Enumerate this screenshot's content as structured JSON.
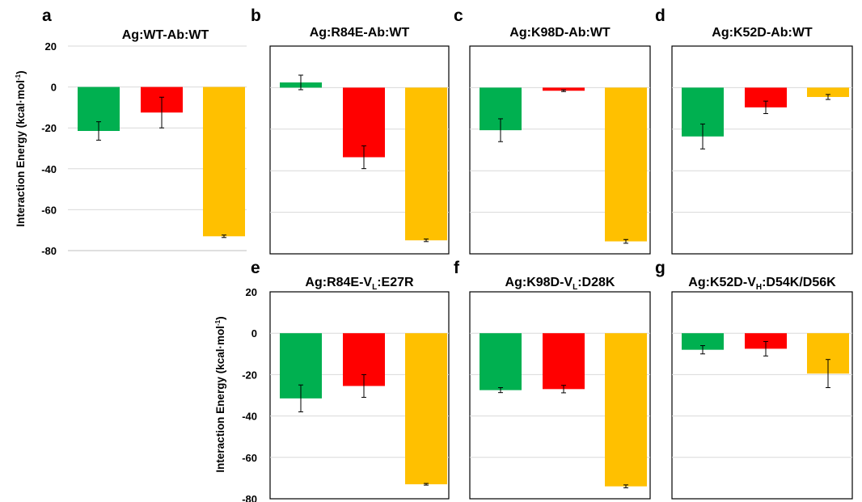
{
  "figure": {
    "ylabel_main": "Interaction Energy (kcal·mol",
    "ylabel_sup": "-1",
    "ylabel_end": ")"
  },
  "chart_data": [
    {
      "letter": "a",
      "type": "bar",
      "title_parts": [
        {
          "text": "Ag:WT-Ab:WT"
        }
      ],
      "categories": [
        "",
        "",
        ""
      ],
      "values": [
        -21.5,
        -12.5,
        -73
      ],
      "errors": [
        4.5,
        7.5,
        0.6
      ],
      "colors": [
        "#00B050",
        "#FF0000",
        "#FFC000"
      ],
      "ylim": [
        -80,
        20
      ],
      "yticks": [
        20,
        0,
        -20,
        -40,
        -60,
        -80
      ],
      "grid": true,
      "frame": false
    },
    {
      "letter": "b",
      "type": "bar",
      "title_parts": [
        {
          "text": "Ag:R84E-Ab:WT"
        }
      ],
      "categories": [
        "",
        "",
        ""
      ],
      "values": [
        2.5,
        -33.5,
        -73.5
      ],
      "errors": [
        3.5,
        5.5,
        0.6
      ],
      "colors": [
        "#00B050",
        "#FF0000",
        "#FFC000"
      ],
      "ylim": [
        -80,
        20
      ],
      "yticks": [
        20,
        0,
        -20,
        -40,
        -60,
        -80
      ],
      "grid": true,
      "frame": true
    },
    {
      "letter": "c",
      "type": "bar",
      "title_parts": [
        {
          "text": "Ag:K98D-Ab:WT"
        }
      ],
      "categories": [
        "",
        "",
        ""
      ],
      "values": [
        -20.5,
        -1.5,
        -74
      ],
      "errors": [
        5.5,
        0.4,
        0.9
      ],
      "colors": [
        "#00B050",
        "#FF0000",
        "#FFC000"
      ],
      "ylim": [
        -80,
        20
      ],
      "yticks": [
        20,
        0,
        -20,
        -40,
        -60,
        -80
      ],
      "grid": true,
      "frame": true
    },
    {
      "letter": "d",
      "type": "bar",
      "title_parts": [
        {
          "text": "Ag:K52D-Ab:WT"
        }
      ],
      "categories": [
        "",
        "",
        ""
      ],
      "values": [
        -23.5,
        -9.5,
        -4.5
      ],
      "errors": [
        6,
        3,
        1.2
      ],
      "colors": [
        "#00B050",
        "#FF0000",
        "#FFC000"
      ],
      "ylim": [
        -80,
        20
      ],
      "yticks": [
        20,
        0,
        -20,
        -40,
        -60,
        -80
      ],
      "grid": true,
      "frame": true
    },
    {
      "letter": "e",
      "type": "bar",
      "title_parts": [
        {
          "text": "Ag:R84E-V"
        },
        {
          "text": "L",
          "sub": true
        },
        {
          "text": ":E27R"
        }
      ],
      "categories": [
        "",
        "",
        ""
      ],
      "values": [
        -31.5,
        -25.5,
        -73
      ],
      "errors": [
        6.5,
        5.5,
        0.4
      ],
      "colors": [
        "#00B050",
        "#FF0000",
        "#FFC000"
      ],
      "ylim": [
        -80,
        20
      ],
      "yticks": [
        20,
        0,
        -20,
        -40,
        -60,
        -80
      ],
      "grid": true,
      "frame": true
    },
    {
      "letter": "f",
      "type": "bar",
      "title_parts": [
        {
          "text": "Ag:K98D-V"
        },
        {
          "text": "L",
          "sub": true
        },
        {
          "text": ":D28K"
        }
      ],
      "categories": [
        "",
        "",
        ""
      ],
      "values": [
        -27.5,
        -27,
        -74
      ],
      "errors": [
        1.2,
        1.8,
        0.7
      ],
      "colors": [
        "#00B050",
        "#FF0000",
        "#FFC000"
      ],
      "ylim": [
        -80,
        20
      ],
      "yticks": [
        20,
        0,
        -20,
        -40,
        -60,
        -80
      ],
      "grid": true,
      "frame": true
    },
    {
      "letter": "g",
      "type": "bar",
      "title_parts": [
        {
          "text": "Ag:K52D-V"
        },
        {
          "text": "H",
          "sub": true
        },
        {
          "text": ":D54K/D56K"
        }
      ],
      "categories": [
        "",
        "",
        ""
      ],
      "values": [
        -8,
        -7.5,
        -19.5
      ],
      "errors": [
        2,
        3.5,
        6.8
      ],
      "colors": [
        "#00B050",
        "#FF0000",
        "#FFC000"
      ],
      "ylim": [
        -80,
        20
      ],
      "yticks": [
        20,
        0,
        -20,
        -40,
        -60,
        -80
      ],
      "grid": true,
      "frame": true
    }
  ]
}
